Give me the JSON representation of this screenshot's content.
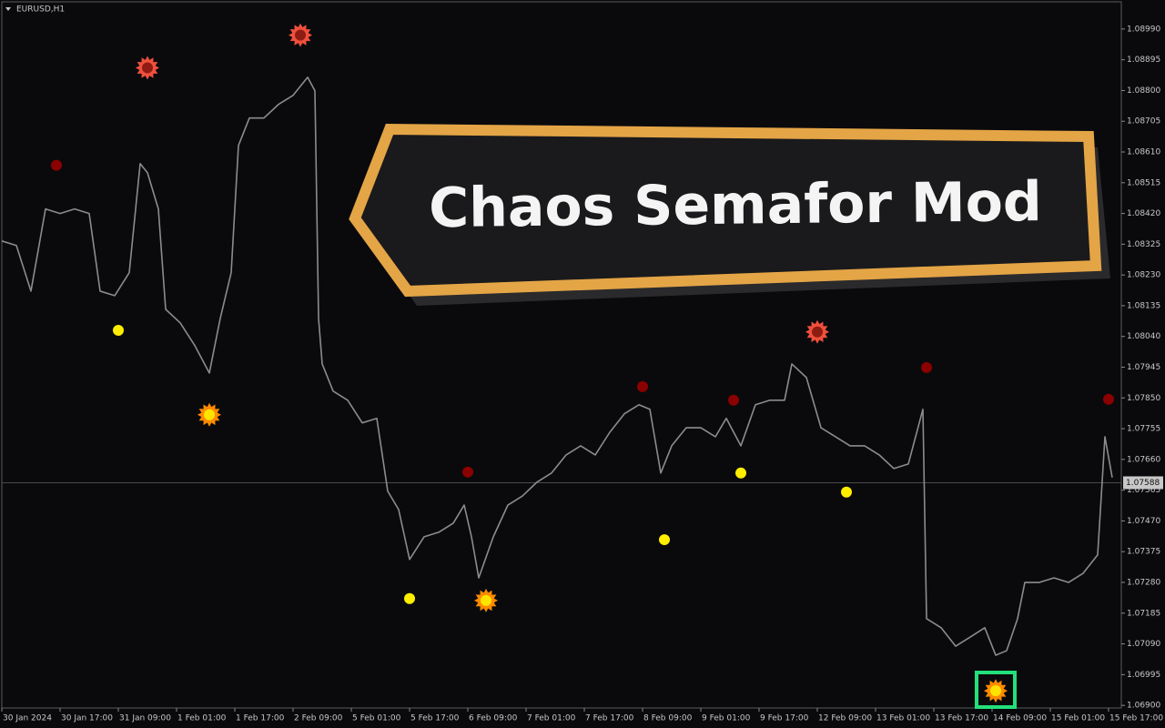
{
  "chart_data": {
    "type": "line",
    "symbol": "EURUSD,H1",
    "annotation": "Chaos Semafor Mod",
    "current_price": 1.07588,
    "xlim": [
      0,
      307.5
    ],
    "ylim": [
      1.06892,
      1.09074
    ],
    "xticks": [
      {
        "value": 0,
        "label": "30 Jan 2024"
      },
      {
        "value": 16,
        "label": "30 Jan 17:00"
      },
      {
        "value": 32,
        "label": "31 Jan 09:00"
      },
      {
        "value": 48,
        "label": "1 Feb 01:00"
      },
      {
        "value": 64,
        "label": "1 Feb 17:00"
      },
      {
        "value": 80,
        "label": "2 Feb 09:00"
      },
      {
        "value": 96,
        "label": "5 Feb 01:00"
      },
      {
        "value": 112,
        "label": "5 Feb 17:00"
      },
      {
        "value": 128,
        "label": "6 Feb 09:00"
      },
      {
        "value": 144,
        "label": "7 Feb 01:00"
      },
      {
        "value": 160,
        "label": "7 Feb 17:00"
      },
      {
        "value": 176,
        "label": "8 Feb 09:00"
      },
      {
        "value": 192,
        "label": "9 Feb 01:00"
      },
      {
        "value": 208,
        "label": "9 Feb 17:00"
      },
      {
        "value": 224,
        "label": "12 Feb 09:00"
      },
      {
        "value": 240,
        "label": "13 Feb 01:00"
      },
      {
        "value": 256,
        "label": "13 Feb 17:00"
      },
      {
        "value": 272,
        "label": "14 Feb 09:00"
      },
      {
        "value": 288,
        "label": "15 Feb 01:00"
      },
      {
        "value": 304,
        "label": "15 Feb 17:00"
      }
    ],
    "yticks": [
      {
        "value": 1.069,
        "label": "1.06900"
      },
      1.06995,
      {
        "value": 1.0709,
        "label": "1.07090"
      },
      1.07185,
      {
        "value": 1.0728,
        "label": "1.07280"
      },
      1.07375,
      {
        "value": 1.0747,
        "label": "1.07470"
      },
      1.07565,
      {
        "value": 1.0766,
        "label": "1.07660"
      },
      1.07755,
      {
        "value": 1.0785,
        "label": "1.07850"
      },
      1.07945,
      {
        "value": 1.0804,
        "label": "1.08040"
      },
      1.08135,
      {
        "value": 1.0823,
        "label": "1.08230"
      },
      1.08325,
      {
        "value": 1.0842,
        "label": "1.08420"
      },
      1.08515,
      {
        "value": 1.0861,
        "label": "1.08610"
      },
      1.08705,
      {
        "value": 1.088,
        "label": "1.08800"
      },
      1.08895,
      {
        "value": 1.0899,
        "label": "1.08990"
      }
    ],
    "series": [
      {
        "color": "#8c8c8c",
        "x": [
          0,
          4,
          8,
          12,
          16,
          20,
          24,
          27,
          31,
          35,
          38,
          40,
          43,
          45,
          49,
          53,
          57,
          60,
          63,
          65,
          68,
          72,
          76,
          80,
          84,
          86,
          87,
          88,
          91,
          95,
          99,
          103,
          106,
          109,
          112,
          116,
          120,
          124,
          127,
          129,
          131,
          135,
          139,
          143,
          147,
          151,
          155,
          159,
          163,
          167,
          171,
          175,
          178,
          181,
          184,
          188,
          192,
          196,
          199,
          203,
          207,
          211,
          215,
          217,
          221,
          225,
          229,
          233,
          237,
          241,
          245,
          249,
          253,
          254,
          258,
          262,
          266,
          270,
          273,
          276,
          279,
          281,
          285,
          289,
          293,
          297,
          301,
          303,
          305
        ],
        "values": [
          1.08335,
          1.08321,
          1.0818,
          1.08434,
          1.0842,
          1.08434,
          1.0842,
          1.0818,
          1.08166,
          1.08237,
          1.08574,
          1.08546,
          1.08434,
          1.08124,
          1.08082,
          1.08012,
          1.07927,
          1.08096,
          1.08237,
          1.0863,
          1.08715,
          1.08715,
          1.08757,
          1.08785,
          1.08841,
          1.08799,
          1.08096,
          1.07955,
          1.07871,
          1.07843,
          1.07773,
          1.07787,
          1.07562,
          1.07505,
          1.07351,
          1.07421,
          1.07435,
          1.07463,
          1.07519,
          1.07421,
          1.07294,
          1.07421,
          1.07519,
          1.07547,
          1.0759,
          1.07618,
          1.07674,
          1.07702,
          1.07674,
          1.07744,
          1.07801,
          1.07829,
          1.07815,
          1.07618,
          1.07702,
          1.07758,
          1.07758,
          1.0773,
          1.07787,
          1.07702,
          1.07829,
          1.07843,
          1.07843,
          1.07955,
          1.07913,
          1.07758,
          1.0773,
          1.07702,
          1.07702,
          1.07674,
          1.07632,
          1.07646,
          1.07815,
          1.07168,
          1.0714,
          1.07083,
          1.07111,
          1.0714,
          1.07055,
          1.07069,
          1.07168,
          1.0728,
          1.0728,
          1.07294,
          1.0728,
          1.07308,
          1.07365,
          1.0773,
          1.07604
        ]
      }
    ],
    "markers": [
      {
        "marker": "dot",
        "color": "#8b0000",
        "x": [
          15,
          128,
          176,
          201,
          254,
          304
        ],
        "values": [
          1.08569,
          1.07621,
          1.07885,
          1.07843,
          1.07944,
          1.07846
        ]
      },
      {
        "marker": "star",
        "color": "#f0503c",
        "inner_color": "#8e1c12",
        "x": [
          40,
          82,
          224
        ],
        "values": [
          1.0887,
          1.08971,
          1.08054
        ]
      },
      {
        "marker": "dot",
        "color": "#ffee00",
        "x": [
          32,
          112,
          182,
          203,
          232
        ],
        "values": [
          1.08059,
          1.0723,
          1.07412,
          1.07618,
          1.07559
        ]
      },
      {
        "marker": "star",
        "color": "#ff8a00",
        "inner_color": "#ffe400",
        "x": [
          57,
          133,
          273
        ],
        "values": [
          1.07798,
          1.07224,
          1.06945
        ]
      }
    ]
  }
}
